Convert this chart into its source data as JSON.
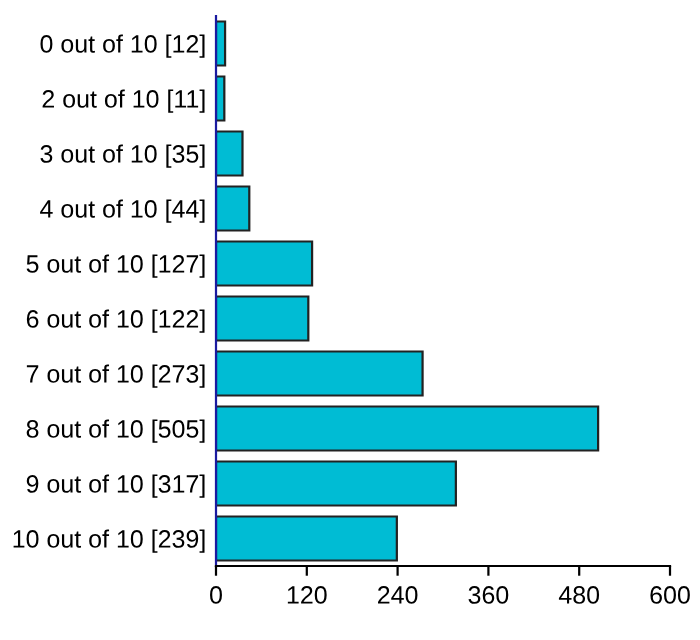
{
  "chart_data": {
    "type": "bar",
    "orientation": "horizontal",
    "categories": [
      "0 out of 10 [12]",
      "2 out of 10 [11]",
      "3 out of 10 [35]",
      "4 out of 10 [44]",
      "5 out of 10 [127]",
      "6 out of 10 [122]",
      "7 out of 10 [273]",
      "8 out of 10 [505]",
      "9 out of 10 [317]",
      "10 out of 10 [239]"
    ],
    "values": [
      12,
      11,
      35,
      44,
      127,
      122,
      273,
      505,
      317,
      239
    ],
    "color": "#00bcd4",
    "xlim": [
      0,
      600
    ],
    "xticks": [
      0,
      120,
      240,
      360,
      480,
      600
    ],
    "grid": false,
    "legend": false
  }
}
